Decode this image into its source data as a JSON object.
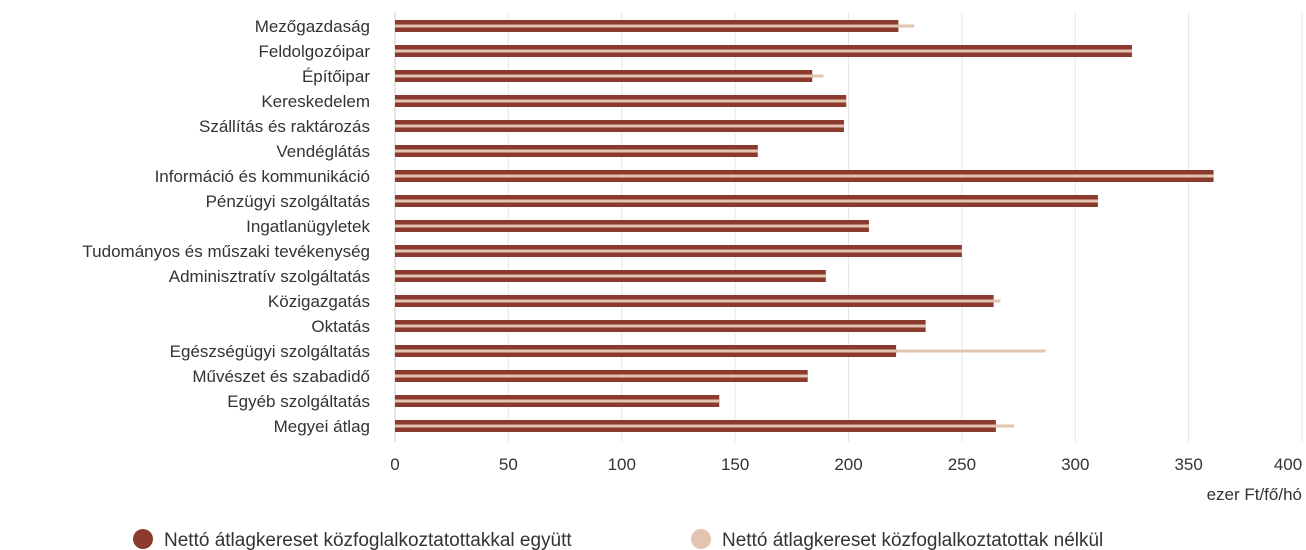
{
  "chart_data": {
    "type": "bar",
    "orientation": "horizontal",
    "categories": [
      "Mezőgazdaság",
      "Feldolgozóipar",
      "Építőipar",
      "Kereskedelem",
      "Szállítás és raktározás",
      "Vendéglátás",
      "Információ és kommunikáció",
      "Pénzügyi szolgáltatás",
      "Ingatlanügyletek",
      "Tudományos és műszaki tevékenység",
      "Adminisztratív szolgáltatás",
      "Közigazgatás",
      "Oktatás",
      "Egészségügyi szolgáltatás",
      "Művészet és szabadidő",
      "Egyéb szolgáltatás",
      "Megyei átlag"
    ],
    "series": [
      {
        "name": "Nettó átlagkereset közfoglalkoztatottakkal együtt",
        "color": "#8B3A2E",
        "values": [
          222,
          325,
          184,
          199,
          198,
          160,
          361,
          310,
          209,
          250,
          190,
          264,
          234,
          221,
          182,
          143,
          265
        ]
      },
      {
        "name": "Nettó átlagkereset közfoglalkoztatottak nélkül",
        "color": "#E3C4B1",
        "values": [
          229,
          325,
          189,
          199,
          198,
          160,
          361,
          310,
          209,
          250,
          190,
          267,
          234,
          287,
          182,
          143,
          273
        ]
      }
    ],
    "xlim": [
      0,
      400
    ],
    "xticks": [
      0,
      50,
      100,
      150,
      200,
      250,
      300,
      350,
      400
    ],
    "xlabel": "ezer Ft/fő/hó",
    "grid": "vertical",
    "legend_position": "bottom"
  }
}
